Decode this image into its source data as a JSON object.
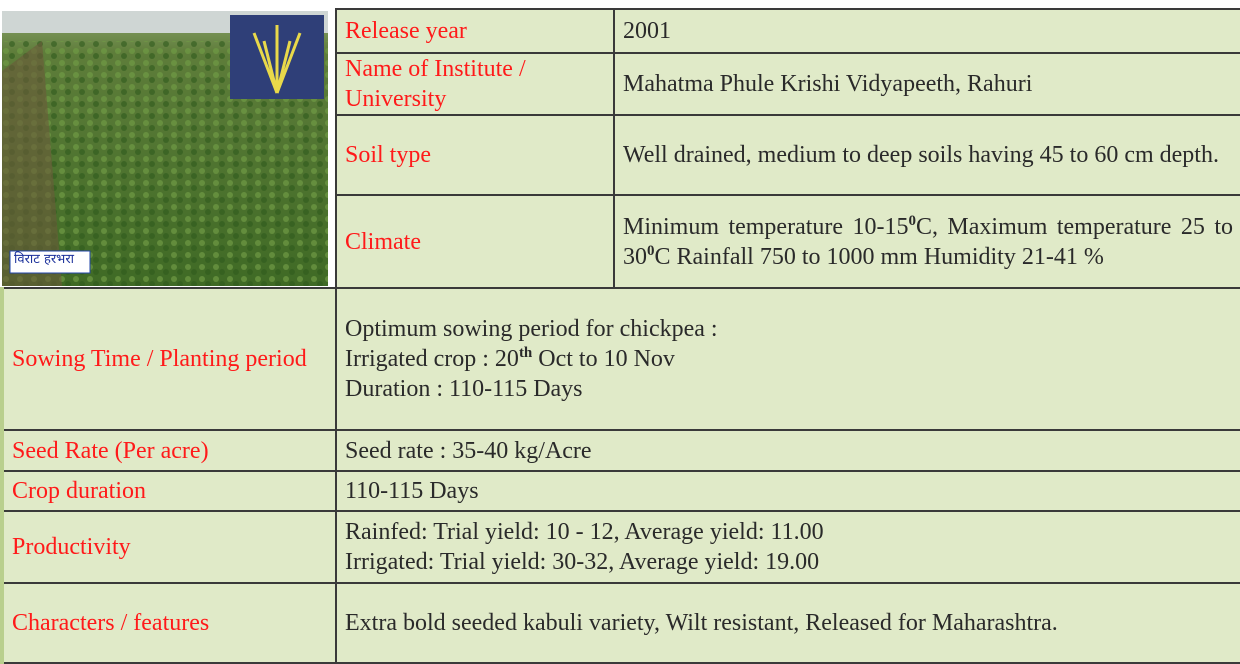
{
  "image": {
    "caption": "विराट हरभरा"
  },
  "top_rows": [
    {
      "label": "Release year",
      "value": [
        [
          {
            "text": "2001"
          }
        ]
      ]
    },
    {
      "label": "Name of Institute / University",
      "value": [
        [
          {
            "text": "Mahatma Phule Krishi Vidyapeeth, Rahuri"
          }
        ]
      ]
    },
    {
      "label": "Soil type",
      "value": [
        [
          {
            "text": "Well drained, medium to deep soils having 45 to 60 cm depth."
          }
        ]
      ]
    },
    {
      "label": "Climate",
      "value": [
        [
          {
            "text": "Minimum temperature  10-15"
          },
          {
            "sup": "0"
          },
          {
            "text": "C, Maximum temperature  25 to 30"
          },
          {
            "sup": "0"
          },
          {
            "text": "C Rainfall  750 to 1000 mm Humidity 21-41 %"
          }
        ]
      ]
    }
  ],
  "rows": [
    {
      "label": "Sowing Time  / Planting  period",
      "value": [
        [
          {
            "text": "Optimum sowing period for chickpea :"
          }
        ],
        [
          {
            "text": "Irrigated crop : 20"
          },
          {
            "sup": "th"
          },
          {
            "text": " Oct to 10 Nov"
          }
        ],
        [
          {
            "text": "Duration : 110-115 Days"
          }
        ]
      ]
    },
    {
      "label": "Seed Rate  (Per acre)",
      "value": [
        [
          {
            "text": "Seed rate  :  35-40  kg/Acre"
          }
        ]
      ]
    },
    {
      "label": "Crop duration",
      "value": [
        [
          {
            "text": "110-115 Days"
          }
        ]
      ]
    },
    {
      "label": "Productivity",
      "value": [
        [
          {
            "text": "Rainfed:  Trial yield: 10 - 12, Average yield: 11.00"
          }
        ],
        [
          {
            "text": "Irrigated: Trial yield: 30-32, Average yield: 19.00"
          }
        ]
      ]
    },
    {
      "label": "Characters / features",
      "value": [
        [
          {
            "text": "Extra bold seeded kabuli variety, Wilt resistant, Released for Maharashtra."
          }
        ]
      ]
    }
  ]
}
